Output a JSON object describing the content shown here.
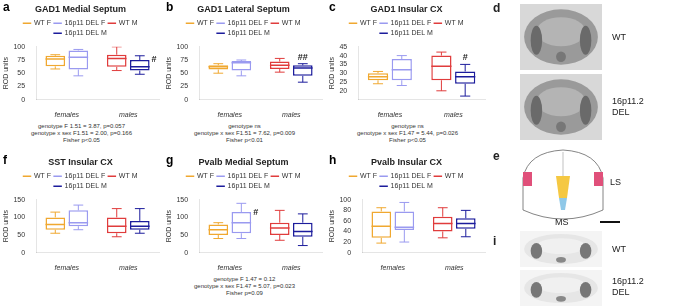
{
  "chart_data": [
    {
      "panel": "a",
      "type": "box",
      "title": "GAD1 Medial Septum",
      "categories": [
        "females",
        "males"
      ],
      "series": [
        {
          "name": "WT F",
          "color": "#f0a830",
          "values": [
            {
              "min": 58,
              "q1": 63,
              "median": 77,
              "q3": 83,
              "max": 85
            },
            null
          ]
        },
        {
          "name": "16p11 DEL F",
          "color": "#9a9af0",
          "values": [
            {
              "min": 45,
              "q1": 57,
              "median": 80,
              "q3": 93,
              "max": 95
            },
            null
          ]
        },
        {
          "name": "WT M",
          "color": "#e03c3c",
          "values": [
            null,
            {
              "min": 55,
              "q1": 62,
              "median": 78,
              "q3": 85,
              "max": 100
            }
          ]
        },
        {
          "name": "16p11 DEL M",
          "color": "#1c1c9c",
          "values": [
            null,
            {
              "min": 48,
              "q1": 55,
              "median": 62,
              "q3": 75,
              "max": 83
            }
          ]
        }
      ],
      "ylabel": "ROD units",
      "ylim": [
        0,
        100
      ],
      "yticks": [
        0,
        25,
        50,
        75,
        100
      ],
      "grid": false,
      "legend": "top",
      "annotations": [
        {
          "text": "#",
          "series": "16p11 DEL M",
          "category": "males"
        }
      ],
      "footnote": [
        "genotype F 1.51 = 3.87, p=0.057",
        "genotype x sex F1.51 = 2.00, p=0.166",
        "Fisher p<0.05"
      ]
    },
    {
      "panel": "b",
      "type": "box",
      "title": "GAD1 Lateral Septum",
      "categories": [
        "females",
        "males"
      ],
      "series": [
        {
          "name": "WT F",
          "color": "#f0a830",
          "values": [
            {
              "min": 50,
              "q1": 57,
              "median": 62,
              "q3": 65,
              "max": 68
            },
            null
          ]
        },
        {
          "name": "16p11 DEL F",
          "color": "#9a9af0",
          "values": [
            {
              "min": 45,
              "q1": 55,
              "median": 70,
              "q3": 73,
              "max": 75
            },
            null
          ]
        },
        {
          "name": "WT M",
          "color": "#e03c3c",
          "values": [
            null,
            {
              "min": 52,
              "q1": 58,
              "median": 65,
              "q3": 72,
              "max": 78
            }
          ]
        },
        {
          "name": "16p11 DEL M",
          "color": "#1c1c9c",
          "values": [
            null,
            {
              "min": 33,
              "q1": 45,
              "median": 60,
              "q3": 65,
              "max": 68
            }
          ]
        }
      ],
      "ylabel": "ROD units",
      "ylim": [
        0,
        100
      ],
      "yticks": [
        0,
        25,
        50,
        75,
        100
      ],
      "grid": false,
      "legend": "top",
      "annotations": [
        {
          "text": "##",
          "series": "16p11 DEL M",
          "category": "males"
        }
      ],
      "footnote": [
        "genotype ns",
        "genotype x sex F1.51 = 7.62, p=0.009",
        "Fisher p<0.01"
      ]
    },
    {
      "panel": "c",
      "type": "box",
      "title": "GAD1 Insular CX",
      "categories": [
        "females",
        "males"
      ],
      "series": [
        {
          "name": "WT F",
          "color": "#f0a830",
          "values": [
            {
              "min": 24,
              "q1": 26,
              "median": 28,
              "q3": 30,
              "max": 31
            },
            null
          ]
        },
        {
          "name": "16p11 DEL F",
          "color": "#9a9af0",
          "values": [
            {
              "min": 23,
              "q1": 26,
              "median": 32,
              "q3": 38,
              "max": 40
            },
            null
          ]
        },
        {
          "name": "WT M",
          "color": "#e03c3c",
          "values": [
            null,
            {
              "min": 20,
              "q1": 26,
              "median": 34,
              "q3": 40,
              "max": 42
            }
          ]
        },
        {
          "name": "16p11 DEL M",
          "color": "#1c1c9c",
          "values": [
            null,
            {
              "min": 17,
              "q1": 24,
              "median": 28,
              "q3": 31,
              "max": 35
            }
          ]
        }
      ],
      "ylabel": "ROD units",
      "ylim": [
        15,
        45
      ],
      "yticks": [
        20,
        25,
        30,
        35,
        40,
        45
      ],
      "grid": false,
      "legend": "top",
      "annotations": [
        {
          "text": "#",
          "series": "16p11 DEL M",
          "category": "males"
        }
      ],
      "footnote": [
        "genotype ns",
        "genotype x sex F1.47 = 5.44, p=0.026",
        "Fisher p<0.05"
      ]
    },
    {
      "panel": "f",
      "type": "box",
      "title": "SST Insular CX",
      "categories": [
        "females",
        "males"
      ],
      "series": [
        {
          "name": "WT F",
          "color": "#f0a830",
          "values": [
            {
              "min": 55,
              "q1": 65,
              "median": 80,
              "q3": 100,
              "max": 115
            },
            null
          ]
        },
        {
          "name": "16p11 DEL F",
          "color": "#9a9af0",
          "values": [
            {
              "min": 65,
              "q1": 75,
              "median": 85,
              "q3": 120,
              "max": 135
            },
            null
          ]
        },
        {
          "name": "WT M",
          "color": "#e03c3c",
          "values": [
            null,
            {
              "min": 45,
              "q1": 55,
              "median": 75,
              "q3": 100,
              "max": 125
            }
          ]
        },
        {
          "name": "16p11 DEL M",
          "color": "#1c1c9c",
          "values": [
            null,
            {
              "min": 55,
              "q1": 65,
              "median": 75,
              "q3": 90,
              "max": 125
            }
          ]
        }
      ],
      "ylabel": "ROD units",
      "ylim": [
        0,
        150
      ],
      "yticks": [
        0,
        50,
        100,
        150
      ],
      "grid": false,
      "legend": "top",
      "annotations": [],
      "footnote": []
    },
    {
      "panel": "g",
      "type": "box",
      "title": "Pvalb Medial Septum",
      "categories": [
        "females",
        "males"
      ],
      "series": [
        {
          "name": "WT F",
          "color": "#f0a830",
          "values": [
            {
              "min": 40,
              "q1": 50,
              "median": 65,
              "q3": 80,
              "max": 85
            },
            null
          ]
        },
        {
          "name": "16p11 DEL F",
          "color": "#9a9af0",
          "values": [
            {
              "min": 40,
              "q1": 55,
              "median": 85,
              "q3": 115,
              "max": 140
            },
            null
          ]
        },
        {
          "name": "WT M",
          "color": "#e03c3c",
          "values": [
            null,
            {
              "min": 35,
              "q1": 50,
              "median": 70,
              "q3": 85,
              "max": 120
            }
          ]
        },
        {
          "name": "16p11 DEL M",
          "color": "#1c1c9c",
          "values": [
            null,
            {
              "min": 20,
              "q1": 45,
              "median": 60,
              "q3": 85,
              "max": 110
            }
          ]
        }
      ],
      "ylabel": "ROD units",
      "ylim": [
        0,
        150
      ],
      "yticks": [
        0,
        50,
        100,
        150
      ],
      "grid": false,
      "legend": "top",
      "annotations": [
        {
          "text": "#",
          "series": "16p11 DEL F",
          "category": "females"
        }
      ],
      "footnote": [
        "genotype F 1.47 = 0.12",
        "genotype x sex F1.47 = 5.07, p=0.023",
        "Fisher p=0.09"
      ]
    },
    {
      "panel": "h",
      "type": "box",
      "title": "Pvalb Insular CX",
      "categories": [
        "females",
        "males"
      ],
      "series": [
        {
          "name": "WT F",
          "color": "#f0a830",
          "values": [
            {
              "min": 18,
              "q1": 28,
              "median": 50,
              "q3": 78,
              "max": 85
            },
            null
          ]
        },
        {
          "name": "16p11 DEL F",
          "color": "#9a9af0",
          "values": [
            {
              "min": 20,
              "q1": 43,
              "median": 48,
              "q3": 78,
              "max": 95
            },
            null
          ]
        },
        {
          "name": "WT M",
          "color": "#e03c3c",
          "values": [
            null,
            {
              "min": 28,
              "q1": 40,
              "median": 55,
              "q3": 68,
              "max": 85
            }
          ]
        },
        {
          "name": "16p11 DEL M",
          "color": "#1c1c9c",
          "values": [
            null,
            {
              "min": 30,
              "q1": 45,
              "median": 55,
              "q3": 65,
              "max": 80
            }
          ]
        }
      ],
      "ylabel": "ROD units",
      "ylim": [
        0,
        100
      ],
      "yticks": [
        0,
        20,
        40,
        60,
        80,
        100
      ],
      "grid": false,
      "legend": "top",
      "annotations": [],
      "footnote": []
    }
  ],
  "images": [
    {
      "panel": "d",
      "labels": [
        "WT",
        "16p11.2 DEL"
      ]
    },
    {
      "panel": "e",
      "labels": [
        "LS",
        "MS"
      ]
    },
    {
      "panel": "i",
      "labels": [
        "WT",
        "16p11.2 DEL"
      ]
    }
  ]
}
